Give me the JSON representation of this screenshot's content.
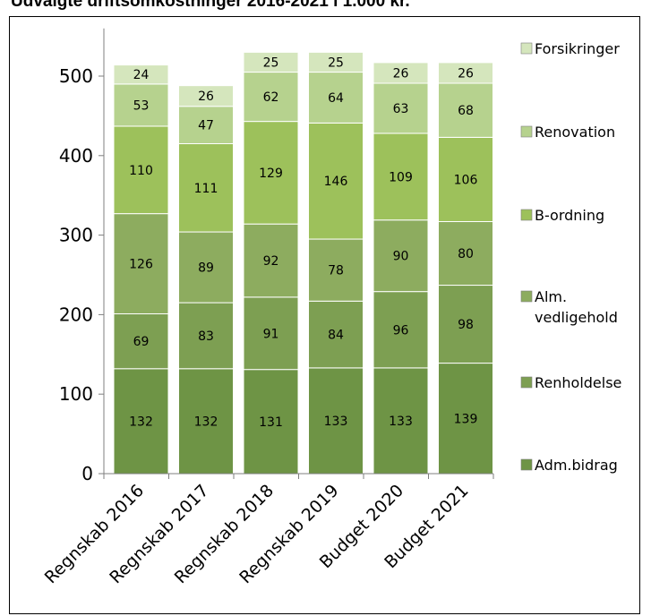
{
  "chart_data": {
    "type": "bar",
    "stacked": true,
    "title": "Udvalgte driftsomkostninger 2016-2021 i 1.000 kr.",
    "categories": [
      "Regnskab 2016",
      "Regnskab 2017",
      "Regnskab 2018",
      "Regnskab 2019",
      "Budget 2020",
      "Budget 2021"
    ],
    "series": [
      {
        "name": "Adm.bidrag",
        "name_lines": [
          "Adm.bidrag"
        ],
        "values": [
          132,
          132,
          131,
          133,
          133,
          139
        ],
        "color": "#6e9445"
      },
      {
        "name": "Renholdelse",
        "name_lines": [
          "Renholdelse"
        ],
        "values": [
          69,
          83,
          91,
          84,
          96,
          98
        ],
        "color": "#7d9f52"
      },
      {
        "name": "Alm. vedligehold",
        "name_lines": [
          "Alm.",
          "vedligehold"
        ],
        "values": [
          126,
          89,
          92,
          78,
          90,
          80
        ],
        "color": "#8dac5f"
      },
      {
        "name": "B-ordning",
        "name_lines": [
          "B-ordning"
        ],
        "values": [
          110,
          111,
          129,
          146,
          109,
          106
        ],
        "color": "#9dc15b"
      },
      {
        "name": "Renovation",
        "name_lines": [
          "Renovation"
        ],
        "values": [
          53,
          47,
          62,
          64,
          63,
          68
        ],
        "color": "#b6d28e"
      },
      {
        "name": "Forsikringer",
        "name_lines": [
          "Forsikringer"
        ],
        "values": [
          24,
          26,
          25,
          25,
          26,
          26
        ],
        "color": "#d5e6bd"
      }
    ],
    "yticks": [
      0,
      100,
      200,
      300,
      400,
      500
    ],
    "ylim": [
      0,
      560
    ],
    "grid": false,
    "legend": "right",
    "xlabel": "",
    "ylabel": ""
  }
}
